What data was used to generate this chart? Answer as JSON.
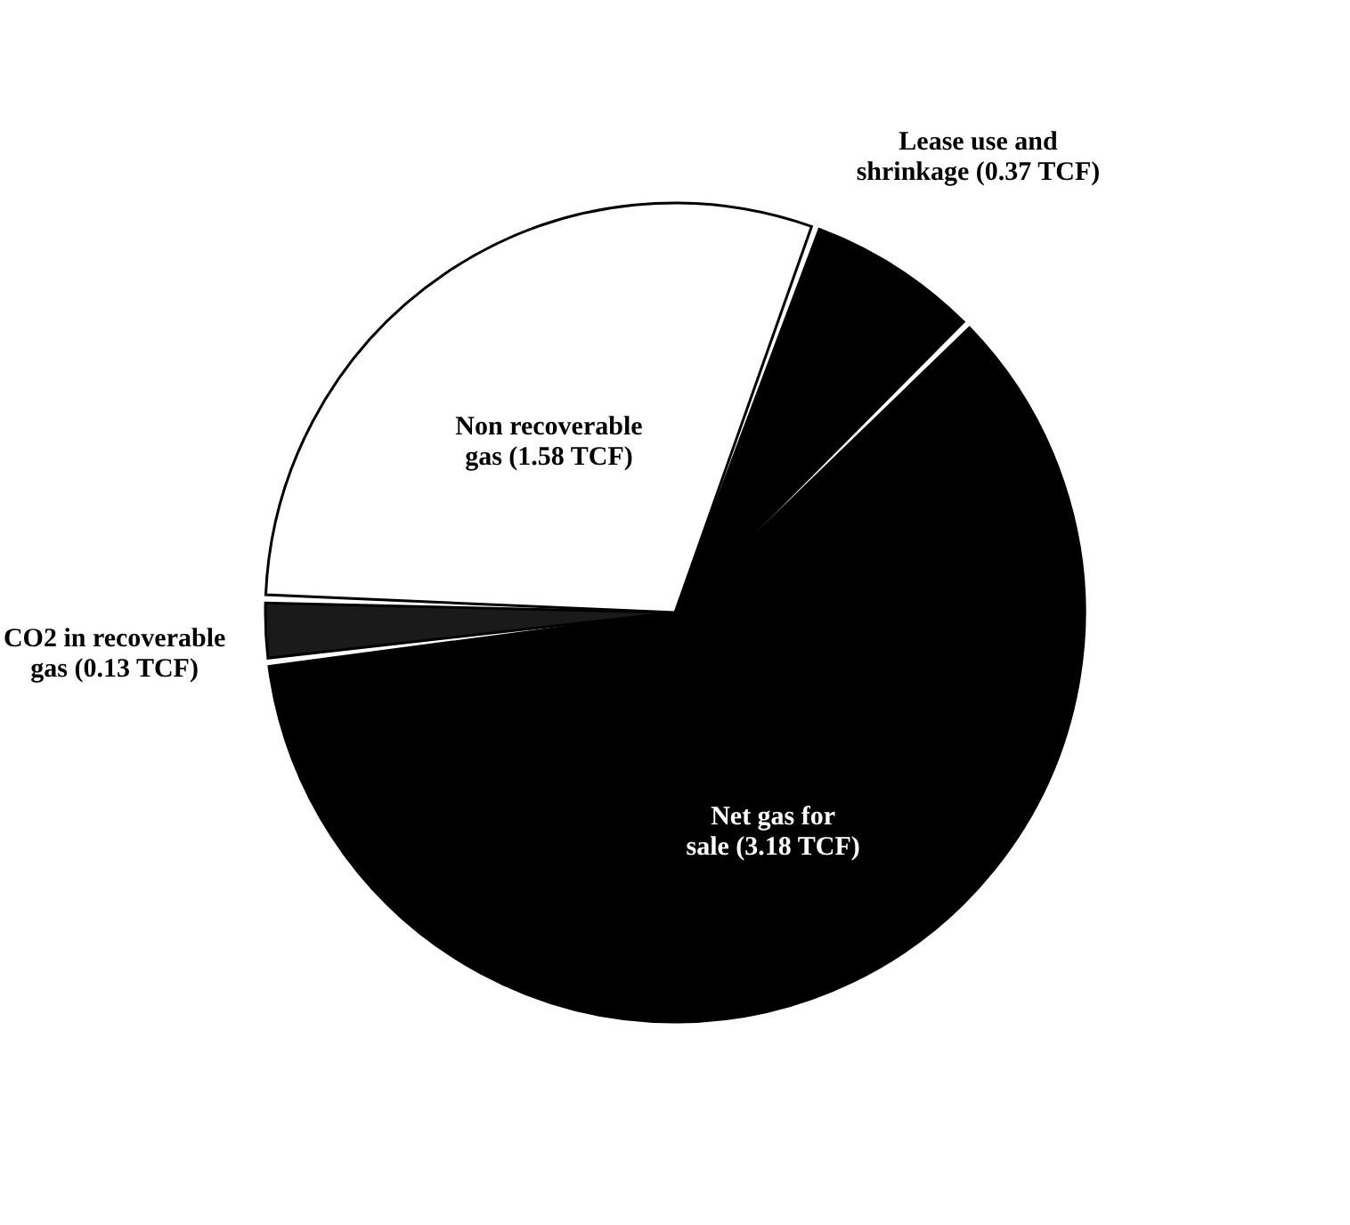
{
  "chart_data": {
    "type": "pie",
    "categories": [
      "Lease use and shrinkage (0.37 TCF)",
      "Net gas for sale (3.18 TCF)",
      "CO2 in recoverable gas (0.13 TCF)",
      "Non recoverable gas (1.58 TCF)"
    ],
    "values": [
      0.37,
      3.18,
      0.13,
      1.58
    ],
    "colors": [
      "#000000",
      "#000000",
      "#1a1a1a",
      "#ffffff"
    ],
    "legend": false
  }
}
